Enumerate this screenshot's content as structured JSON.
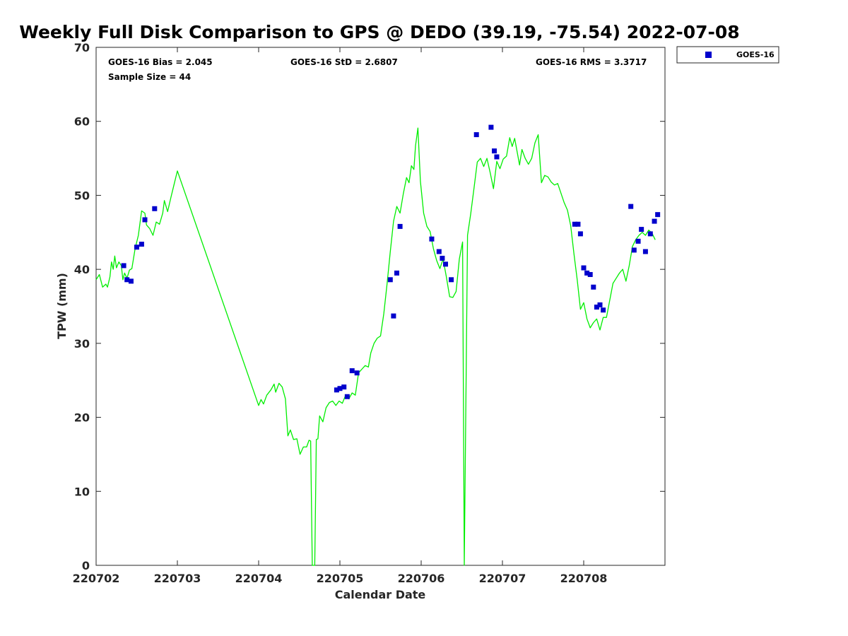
{
  "chart_data": {
    "type": "scatter",
    "title": "Weekly Full Disk Comparison to GPS @ DEDO (39.19, -75.54) 2022-07-08",
    "xlabel": "Calendar Date",
    "ylabel": "TPW (mm)",
    "ylim": [
      0,
      70
    ],
    "yticks": [
      0,
      10,
      20,
      30,
      40,
      50,
      60,
      70
    ],
    "xlim": [
      0,
      7
    ],
    "xticks": [
      0,
      1,
      2,
      3,
      4,
      5,
      6
    ],
    "xtick_labels": [
      "220702",
      "220703",
      "220704",
      "220705",
      "220706",
      "220707",
      "220708"
    ],
    "grid": false,
    "legend_position": "top-right, outside plot",
    "stats": {
      "bias": "GOES-16 Bias = 2.045",
      "std": "GOES-16 StD = 2.6807",
      "rms": "GOES-16 RMS = 3.3717",
      "sample": "Sample Size = 44"
    },
    "colors": {
      "gps_line": "#00ee00",
      "goes_marker": "#0000cc"
    },
    "series": [
      {
        "name": "",
        "kind": "line",
        "points": [
          [
            0.0,
            38.6
          ],
          [
            0.04,
            39.3
          ],
          [
            0.08,
            37.6
          ],
          [
            0.12,
            38.0
          ],
          [
            0.14,
            37.6
          ],
          [
            0.17,
            39.0
          ],
          [
            0.19,
            41.0
          ],
          [
            0.21,
            40.0
          ],
          [
            0.23,
            41.8
          ],
          [
            0.25,
            40.2
          ],
          [
            0.28,
            41.0
          ],
          [
            0.31,
            40.5
          ],
          [
            0.33,
            38.6
          ],
          [
            0.35,
            39.5
          ],
          [
            0.38,
            38.8
          ],
          [
            0.41,
            39.9
          ],
          [
            0.44,
            40.1
          ],
          [
            0.48,
            42.8
          ],
          [
            0.52,
            44.6
          ],
          [
            0.56,
            47.9
          ],
          [
            0.6,
            47.6
          ],
          [
            0.62,
            46.0
          ],
          [
            0.66,
            45.5
          ],
          [
            0.7,
            44.6
          ],
          [
            0.74,
            46.4
          ],
          [
            0.78,
            46.1
          ],
          [
            0.82,
            47.6
          ],
          [
            0.84,
            49.3
          ],
          [
            0.88,
            47.8
          ],
          [
            0.92,
            49.7
          ],
          [
            0.96,
            51.5
          ],
          [
            1.0,
            53.3
          ],
          [
            2.0,
            21.6
          ],
          [
            2.03,
            22.4
          ],
          [
            2.06,
            21.8
          ],
          [
            2.1,
            23.0
          ],
          [
            2.15,
            23.7
          ],
          [
            2.19,
            24.5
          ],
          [
            2.21,
            23.4
          ],
          [
            2.25,
            24.6
          ],
          [
            2.29,
            24.1
          ],
          [
            2.33,
            22.5
          ],
          [
            2.36,
            17.5
          ],
          [
            2.39,
            18.3
          ],
          [
            2.43,
            17.0
          ],
          [
            2.47,
            17.1
          ],
          [
            2.51,
            15.0
          ],
          [
            2.55,
            16.0
          ],
          [
            2.59,
            16.0
          ],
          [
            2.62,
            16.9
          ],
          [
            2.64,
            16.8
          ],
          [
            2.66,
            0.0
          ],
          [
            2.69,
            0.0
          ],
          [
            2.71,
            17.0
          ],
          [
            2.73,
            17.1
          ],
          [
            2.75,
            20.2
          ],
          [
            2.79,
            19.4
          ],
          [
            2.83,
            21.3
          ],
          [
            2.87,
            22.0
          ],
          [
            2.91,
            22.2
          ],
          [
            2.95,
            21.6
          ],
          [
            2.99,
            22.2
          ],
          [
            3.03,
            21.9
          ],
          [
            3.07,
            23.0
          ],
          [
            3.11,
            22.5
          ],
          [
            3.15,
            23.3
          ],
          [
            3.19,
            23.0
          ],
          [
            3.23,
            26.0
          ],
          [
            3.27,
            26.5
          ],
          [
            3.31,
            27.0
          ],
          [
            3.35,
            26.8
          ],
          [
            3.38,
            28.7
          ],
          [
            3.42,
            30.0
          ],
          [
            3.46,
            30.7
          ],
          [
            3.5,
            31.0
          ],
          [
            3.54,
            34.0
          ],
          [
            3.58,
            38.0
          ],
          [
            3.62,
            42.4
          ],
          [
            3.66,
            46.5
          ],
          [
            3.7,
            48.5
          ],
          [
            3.74,
            47.6
          ],
          [
            3.78,
            50.2
          ],
          [
            3.82,
            52.4
          ],
          [
            3.85,
            51.7
          ],
          [
            3.88,
            54.0
          ],
          [
            3.91,
            53.5
          ],
          [
            3.93,
            56.7
          ],
          [
            3.96,
            59.1
          ],
          [
            3.99,
            51.9
          ],
          [
            4.03,
            47.6
          ],
          [
            4.07,
            45.8
          ],
          [
            4.11,
            45.1
          ],
          [
            4.15,
            42.8
          ],
          [
            4.19,
            41.2
          ],
          [
            4.23,
            40.1
          ],
          [
            4.27,
            41.4
          ],
          [
            4.31,
            39.0
          ],
          [
            4.35,
            36.3
          ],
          [
            4.39,
            36.2
          ],
          [
            4.43,
            37.0
          ],
          [
            4.47,
            41.4
          ],
          [
            4.51,
            43.7
          ],
          [
            4.53,
            0.0
          ],
          [
            4.57,
            44.6
          ],
          [
            4.61,
            47.5
          ],
          [
            4.65,
            51.0
          ],
          [
            4.69,
            54.5
          ],
          [
            4.73,
            55.0
          ],
          [
            4.77,
            53.9
          ],
          [
            4.81,
            55.0
          ],
          [
            4.85,
            53.0
          ],
          [
            4.89,
            50.9
          ],
          [
            4.93,
            54.6
          ],
          [
            4.97,
            53.6
          ],
          [
            5.01,
            54.9
          ],
          [
            5.05,
            55.3
          ],
          [
            5.09,
            57.8
          ],
          [
            5.12,
            56.6
          ],
          [
            5.15,
            57.7
          ],
          [
            5.19,
            55.3
          ],
          [
            5.21,
            54.1
          ],
          [
            5.24,
            56.2
          ],
          [
            5.28,
            55.0
          ],
          [
            5.32,
            54.2
          ],
          [
            5.36,
            55.0
          ],
          [
            5.4,
            57.1
          ],
          [
            5.44,
            58.2
          ],
          [
            5.48,
            51.7
          ],
          [
            5.52,
            52.7
          ],
          [
            5.56,
            52.5
          ],
          [
            5.6,
            51.8
          ],
          [
            5.64,
            51.4
          ],
          [
            5.68,
            51.6
          ],
          [
            5.72,
            50.3
          ],
          [
            5.76,
            49.0
          ],
          [
            5.8,
            48.0
          ],
          [
            5.84,
            45.9
          ],
          [
            5.88,
            42.1
          ],
          [
            5.92,
            38.6
          ],
          [
            5.96,
            34.6
          ],
          [
            6.0,
            35.5
          ],
          [
            6.04,
            33.3
          ],
          [
            6.08,
            32.1
          ],
          [
            6.12,
            32.8
          ],
          [
            6.16,
            33.3
          ],
          [
            6.2,
            31.8
          ],
          [
            6.24,
            33.5
          ],
          [
            6.28,
            33.5
          ],
          [
            6.32,
            35.8
          ],
          [
            6.36,
            38.1
          ],
          [
            6.4,
            38.8
          ],
          [
            6.44,
            39.5
          ],
          [
            6.48,
            40.0
          ],
          [
            6.52,
            38.4
          ],
          [
            6.56,
            40.5
          ],
          [
            6.6,
            43.1
          ],
          [
            6.64,
            44.0
          ],
          [
            6.68,
            44.6
          ],
          [
            6.72,
            45.0
          ],
          [
            6.76,
            44.6
          ],
          [
            6.8,
            45.3
          ],
          [
            6.84,
            44.9
          ],
          [
            6.88,
            44.0
          ]
        ]
      },
      {
        "name": "GOES-16",
        "kind": "scatter",
        "points": [
          [
            0.34,
            40.5
          ],
          [
            0.38,
            38.6
          ],
          [
            0.43,
            38.4
          ],
          [
            0.5,
            43.0
          ],
          [
            0.56,
            43.4
          ],
          [
            0.6,
            46.7
          ],
          [
            0.72,
            48.2
          ],
          [
            2.96,
            23.7
          ],
          [
            3.0,
            23.9
          ],
          [
            3.05,
            24.1
          ],
          [
            3.09,
            22.8
          ],
          [
            3.15,
            26.3
          ],
          [
            3.21,
            26.0
          ],
          [
            3.62,
            38.6
          ],
          [
            3.66,
            33.7
          ],
          [
            3.7,
            39.5
          ],
          [
            3.74,
            45.8
          ],
          [
            4.13,
            44.1
          ],
          [
            4.22,
            42.4
          ],
          [
            4.26,
            41.5
          ],
          [
            4.3,
            40.7
          ],
          [
            4.37,
            38.6
          ],
          [
            4.68,
            58.2
          ],
          [
            4.86,
            59.2
          ],
          [
            4.9,
            56.0
          ],
          [
            4.93,
            55.2
          ],
          [
            5.89,
            46.1
          ],
          [
            5.93,
            46.1
          ],
          [
            5.96,
            44.8
          ],
          [
            6.0,
            40.2
          ],
          [
            6.04,
            39.5
          ],
          [
            6.08,
            39.3
          ],
          [
            6.12,
            37.6
          ],
          [
            6.16,
            34.9
          ],
          [
            6.2,
            35.2
          ],
          [
            6.24,
            34.5
          ],
          [
            6.58,
            48.5
          ],
          [
            6.62,
            42.6
          ],
          [
            6.67,
            43.8
          ],
          [
            6.71,
            45.4
          ],
          [
            6.76,
            42.4
          ],
          [
            6.82,
            44.8
          ],
          [
            6.87,
            46.5
          ],
          [
            6.91,
            47.4
          ]
        ]
      }
    ]
  }
}
